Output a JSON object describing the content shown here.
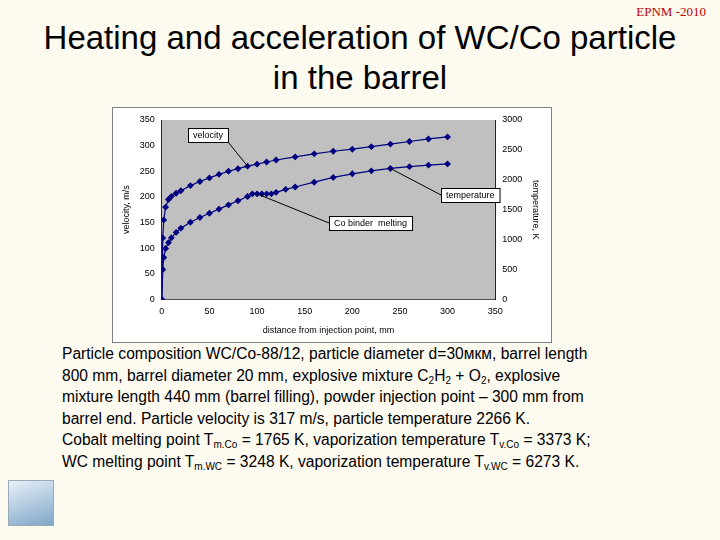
{
  "header": "EPNM -2010",
  "title": [
    "Heating and acceleration of WC/Co particle",
    "in the barrel"
  ],
  "chart_data": {
    "type": "line",
    "x_label": "distance from injection point, mm",
    "y_label": "velocity, m/s",
    "y2_label": "temperature, K",
    "xlim": [
      0,
      350
    ],
    "xticks": [
      0,
      50,
      100,
      150,
      200,
      250,
      300,
      350
    ],
    "ylim": [
      0,
      350
    ],
    "yticks": [
      0,
      50,
      100,
      150,
      200,
      250,
      300,
      350
    ],
    "y2lim": [
      0,
      3000
    ],
    "y2ticks": [
      0,
      500,
      1000,
      1500,
      2000,
      2500,
      3000
    ],
    "grid": false,
    "marker": "diamond",
    "series": [
      {
        "name": "velocity",
        "color": "#000080",
        "x": [
          0,
          1,
          2,
          4,
          7,
          10,
          15,
          20,
          30,
          40,
          50,
          60,
          70,
          80,
          90,
          100,
          110,
          120,
          140,
          160,
          180,
          200,
          220,
          240,
          260,
          280,
          300
        ],
        "values": [
          0,
          120,
          155,
          180,
          195,
          201,
          207,
          212,
          222,
          230,
          237,
          244,
          250,
          255,
          260,
          264,
          268,
          272,
          278,
          284,
          289,
          293,
          298,
          303,
          308,
          313,
          317
        ]
      },
      {
        "name": "temperature",
        "color": "#000080",
        "axis": "y2",
        "x": [
          0,
          1,
          2,
          4,
          7,
          10,
          15,
          20,
          30,
          40,
          50,
          60,
          70,
          80,
          90,
          95,
          100,
          105,
          110,
          115,
          120,
          130,
          140,
          160,
          180,
          200,
          220,
          240,
          260,
          280,
          300
        ],
        "values": [
          0,
          500,
          700,
          850,
          950,
          1030,
          1120,
          1190,
          1290,
          1370,
          1440,
          1510,
          1580,
          1650,
          1720,
          1765,
          1765,
          1765,
          1765,
          1765,
          1790,
          1840,
          1880,
          1960,
          2040,
          2100,
          2150,
          2190,
          2220,
          2245,
          2266
        ]
      }
    ],
    "annotations": [
      {
        "text": "velocity",
        "series": "velocity"
      },
      {
        "text": "temperature",
        "series": "temperature"
      },
      {
        "text": "Co binder  melting",
        "series": "temperature"
      }
    ],
    "legend": false
  },
  "caption": [
    [
      "Particle composition WC/Co-88/12, particle diameter d=30мкм, barrel length"
    ],
    [
      "800 mm, barrel diameter 20 mm, explosive mixture C",
      {
        "sub": "2"
      },
      "H",
      {
        "sub": "2"
      },
      " + O",
      {
        "sub": "2"
      },
      ", explosive"
    ],
    [
      "mixture length 440 mm (barrel filling), powder injection point – 300 mm from"
    ],
    [
      "barrel end. Particle velocity is 317 m/s, particle temperature 2266 K."
    ],
    [
      "Cobalt melting point T",
      {
        "sub": "m.Co"
      },
      " = 1765 K, vaporization temperature T",
      {
        "sub": "v.Co"
      },
      " = 3373 K;"
    ],
    [
      "WC melting point T",
      {
        "sub": "m.WC"
      },
      " = 3248 K, vaporization temperature T",
      {
        "sub": "v.WC"
      },
      " = 6273 K."
    ]
  ]
}
